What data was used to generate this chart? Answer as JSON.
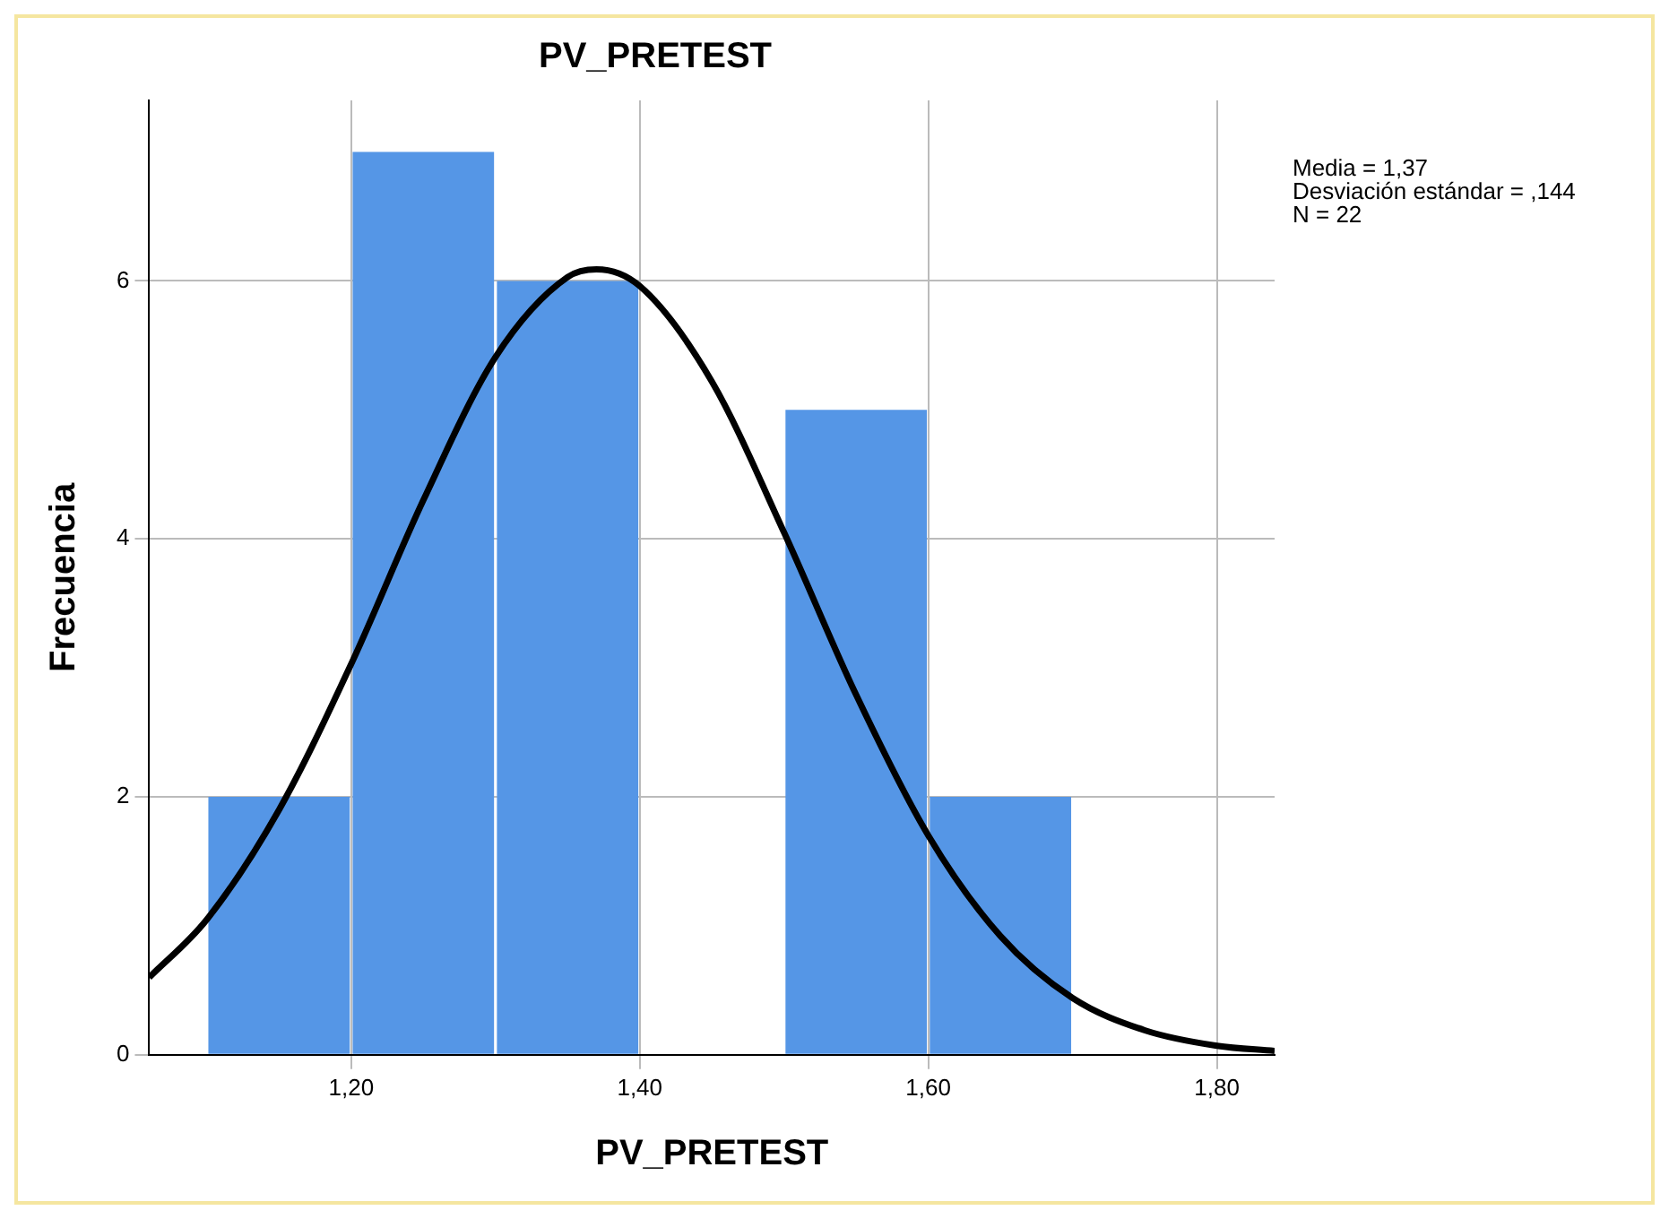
{
  "chart_data": {
    "type": "histogram",
    "title": "PV_PRETEST",
    "xlabel": "PV_PRETEST",
    "ylabel": "Frecuencia",
    "bins": [
      1.1,
      1.2,
      1.3,
      1.4,
      1.5,
      1.6,
      1.7
    ],
    "values": [
      2,
      7,
      6,
      0,
      5,
      2
    ],
    "color": "#5596e6",
    "series": [
      {
        "type": "line",
        "color": "#000000",
        "x": [
          1.06,
          1.1,
          1.15,
          1.2,
          1.25,
          1.3,
          1.35,
          1.37,
          1.4,
          1.45,
          1.5,
          1.55,
          1.6,
          1.65,
          1.7,
          1.75,
          1.8,
          1.84
        ],
        "values": [
          0.6,
          1.05,
          1.9,
          3.03,
          4.3,
          5.41,
          6.03,
          6.09,
          5.96,
          5.22,
          4.05,
          2.79,
          1.7,
          0.92,
          0.44,
          0.19,
          0.07,
          0.03
        ]
      }
    ],
    "xlim": [
      1.06,
      1.84
    ],
    "xticks": [
      {
        "value": 1.2,
        "label": "1,20"
      },
      {
        "value": 1.4,
        "label": "1,40"
      },
      {
        "value": 1.6,
        "label": "1,60"
      },
      {
        "value": 1.8,
        "label": "1,80"
      }
    ],
    "ylim": [
      0,
      7.4
    ],
    "yticks": [
      0,
      2,
      4,
      6
    ],
    "grid": true,
    "marker": "none",
    "annotations": [
      "Media = 1,37",
      "Desviación estándar = ,144",
      "N = 22"
    ]
  }
}
